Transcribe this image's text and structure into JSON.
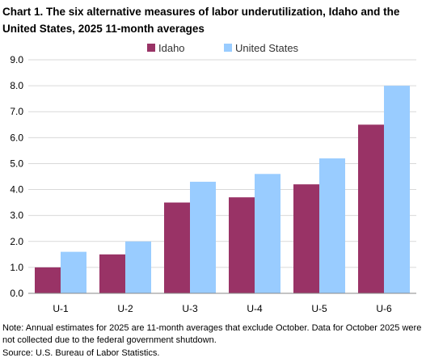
{
  "chart_data": {
    "type": "bar",
    "title": "Chart 1. The six alternative measures of labor underutilization, Idaho and the United States, 2025 11-month averages",
    "categories": [
      "U-1",
      "U-2",
      "U-3",
      "U-4",
      "U-5",
      "U-6"
    ],
    "series": [
      {
        "name": "Idaho",
        "color": "#993366",
        "values": [
          1.0,
          1.5,
          3.5,
          3.7,
          4.2,
          6.5
        ]
      },
      {
        "name": "United States",
        "color": "#99ccff",
        "values": [
          1.6,
          2.0,
          4.3,
          4.6,
          5.2,
          8.0
        ]
      }
    ],
    "ylim": [
      0,
      9
    ],
    "yticks": [
      "0.0",
      "1.0",
      "2.0",
      "3.0",
      "4.0",
      "5.0",
      "6.0",
      "7.0",
      "8.0",
      "9.0"
    ],
    "grid": true,
    "legend": "top-center",
    "note": "Note: Annual estimates for 2025 are 11-month averages that exclude October. Data for October 2025 were not collected due to the federal government shutdown.",
    "source": "Source: U.S. Bureau of Labor Statistics."
  }
}
